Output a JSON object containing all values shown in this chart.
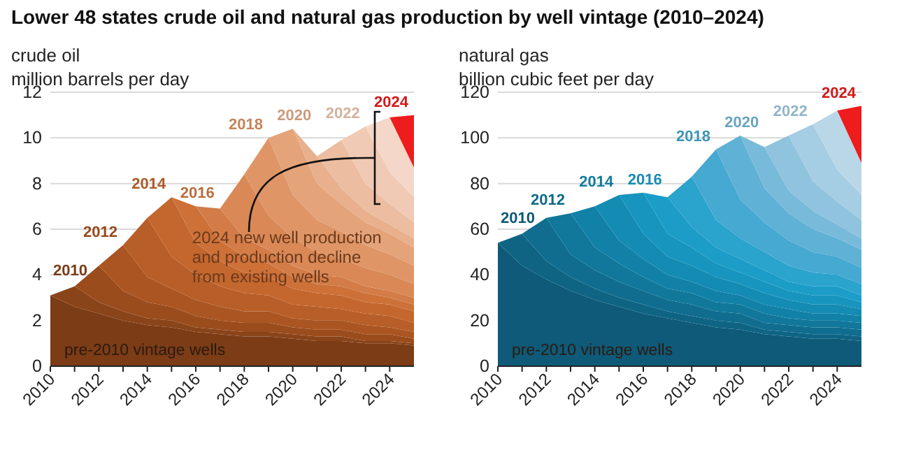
{
  "chart_data": [
    {
      "type": "area",
      "stacked": true,
      "title": "Lower 48 states crude oil and natural gas production by well vintage (2010–2024)",
      "subtitle": "crude oil",
      "ylabel": "million barrels per day",
      "x": [
        2010,
        2011,
        2012,
        2013,
        2014,
        2015,
        2016,
        2017,
        2018,
        2019,
        2020,
        2021,
        2022,
        2023,
        2024,
        2025
      ],
      "xlim": [
        2010,
        2025
      ],
      "xticks": [
        2010,
        {
          "value": 2011,
          "label": null
        },
        2012,
        {
          "value": 2013,
          "label": null
        },
        2014,
        {
          "value": 2015,
          "label": null
        },
        2016,
        {
          "value": 2017,
          "label": null
        },
        2018,
        {
          "value": 2019,
          "label": null
        },
        2020,
        {
          "value": 2021,
          "label": null
        },
        2022,
        {
          "value": 2023,
          "label": null
        },
        2024
      ],
      "ylim": [
        0,
        12
      ],
      "yticks": [
        0,
        2,
        4,
        6,
        8,
        10,
        12
      ],
      "grid": "y",
      "legend": false,
      "annotations": [
        "2024 new well production and production decline from existing wells"
      ],
      "series": [
        {
          "name": "pre-2010 vintage wells",
          "color": "#7b3c16",
          "values": [
            3.1,
            2.6,
            2.3,
            2.0,
            1.8,
            1.7,
            1.5,
            1.4,
            1.3,
            1.3,
            1.2,
            1.1,
            1.1,
            1.0,
            1.0,
            0.9
          ]
        },
        {
          "name": "2010",
          "color": "#8a4419",
          "values": [
            0,
            0.9,
            0.5,
            0.4,
            0.3,
            0.3,
            0.2,
            0.2,
            0.2,
            0.2,
            0.2,
            0.2,
            0.2,
            0.1,
            0.1,
            0.1
          ]
        },
        {
          "color": "#9a4c1d",
          "values": [
            null,
            0,
            1.6,
            0.9,
            0.7,
            0.6,
            0.5,
            0.4,
            0.4,
            0.4,
            0.3,
            0.3,
            0.3,
            0.3,
            0.3,
            0.2
          ]
        },
        {
          "name": "2012",
          "color": "#aa5522",
          "values": [
            null,
            null,
            0,
            2.0,
            1.1,
            0.8,
            0.7,
            0.6,
            0.5,
            0.5,
            0.4,
            0.4,
            0.4,
            0.4,
            0.3,
            0.3
          ]
        },
        {
          "color": "#b85e28",
          "values": [
            null,
            null,
            null,
            0,
            2.6,
            1.4,
            1.1,
            0.9,
            0.8,
            0.7,
            0.6,
            0.6,
            0.5,
            0.5,
            0.5,
            0.4
          ]
        },
        {
          "name": "2014",
          "color": "#c4672e",
          "values": [
            null,
            null,
            null,
            null,
            0,
            2.6,
            1.4,
            1.1,
            0.9,
            0.8,
            0.7,
            0.6,
            0.6,
            0.5,
            0.5,
            0.5
          ]
        },
        {
          "color": "#cd7139",
          "values": [
            null,
            null,
            null,
            null,
            null,
            0,
            1.6,
            0.9,
            0.7,
            0.6,
            0.5,
            0.4,
            0.4,
            0.4,
            0.3,
            0.3
          ]
        },
        {
          "name": "2016",
          "color": "#d37c47",
          "values": [
            null,
            null,
            null,
            null,
            null,
            null,
            0,
            1.4,
            0.8,
            0.6,
            0.5,
            0.4,
            0.4,
            0.3,
            0.3,
            0.3
          ]
        },
        {
          "color": "#d98856",
          "values": [
            null,
            null,
            null,
            null,
            null,
            null,
            null,
            0,
            2.8,
            1.5,
            1.2,
            1.0,
            0.8,
            0.8,
            0.7,
            0.6
          ]
        },
        {
          "name": "2018",
          "color": "#df9566",
          "values": [
            null,
            null,
            null,
            null,
            null,
            null,
            null,
            null,
            0,
            3.4,
            1.9,
            1.4,
            1.2,
            1.0,
            0.9,
            0.8
          ]
        },
        {
          "color": "#e4a379",
          "values": [
            null,
            null,
            null,
            null,
            null,
            null,
            null,
            null,
            null,
            0,
            2.9,
            1.6,
            1.2,
            1.0,
            0.9,
            0.8
          ]
        },
        {
          "name": "2020",
          "color": "#e8b08c",
          "values": [
            null,
            null,
            null,
            null,
            null,
            null,
            null,
            null,
            null,
            null,
            0,
            1.2,
            0.7,
            0.5,
            0.4,
            0.4
          ]
        },
        {
          "color": "#ecbda0",
          "values": [
            null,
            null,
            null,
            null,
            null,
            null,
            null,
            null,
            null,
            null,
            null,
            0,
            2.1,
            1.2,
            0.9,
            0.7
          ]
        },
        {
          "name": "2022",
          "color": "#f0cab4",
          "values": [
            null,
            null,
            null,
            null,
            null,
            null,
            null,
            null,
            null,
            null,
            null,
            null,
            0,
            2.5,
            1.4,
            1.1
          ]
        },
        {
          "color": "#f4d7c8",
          "values": [
            null,
            null,
            null,
            null,
            null,
            null,
            null,
            null,
            null,
            null,
            null,
            null,
            null,
            0,
            2.4,
            1.3
          ]
        },
        {
          "name": "2024",
          "color": "#ee1c1c",
          "values": [
            null,
            null,
            null,
            null,
            null,
            null,
            null,
            null,
            null,
            null,
            null,
            null,
            null,
            null,
            0,
            2.3
          ]
        }
      ]
    },
    {
      "type": "area",
      "stacked": true,
      "subtitle": "natural gas",
      "ylabel": "billion cubic feet per day",
      "x": [
        2010,
        2011,
        2012,
        2013,
        2014,
        2015,
        2016,
        2017,
        2018,
        2019,
        2020,
        2021,
        2022,
        2023,
        2024,
        2025
      ],
      "xlim": [
        2010,
        2025
      ],
      "xticks": [
        2010,
        {
          "value": 2011,
          "label": null
        },
        2012,
        {
          "value": 2013,
          "label": null
        },
        2014,
        {
          "value": 2015,
          "label": null
        },
        2016,
        {
          "value": 2017,
          "label": null
        },
        2018,
        {
          "value": 2019,
          "label": null
        },
        2020,
        {
          "value": 2021,
          "label": null
        },
        2022,
        {
          "value": 2023,
          "label": null
        },
        2024
      ],
      "ylim": [
        0,
        120
      ],
      "yticks": [
        0,
        20,
        40,
        60,
        80,
        100,
        120
      ],
      "grid": "y",
      "legend": false,
      "series": [
        {
          "name": "pre-2010 vintage wells",
          "color": "#0e5a78",
          "values": [
            54,
            44,
            38,
            33,
            29,
            26,
            23,
            21,
            19,
            17,
            16,
            14,
            13,
            12,
            12,
            11
          ]
        },
        {
          "name": "2010",
          "color": "#0f6484",
          "values": [
            0,
            14,
            8,
            6,
            5,
            4,
            4,
            3,
            3,
            3,
            3,
            2,
            2,
            2,
            2,
            2
          ]
        },
        {
          "color": "#106d8f",
          "values": [
            null,
            0,
            19,
            10,
            8,
            7,
            6,
            5,
            5,
            4,
            4,
            3,
            3,
            3,
            3,
            3
          ]
        },
        {
          "name": "2012",
          "color": "#11779b",
          "values": [
            null,
            null,
            0,
            18,
            10,
            8,
            6,
            5,
            5,
            4,
            4,
            4,
            3,
            3,
            3,
            3
          ]
        },
        {
          "color": "#1281a7",
          "values": [
            null,
            null,
            null,
            0,
            18,
            10,
            8,
            6,
            5,
            5,
            4,
            4,
            4,
            3,
            3,
            3
          ]
        },
        {
          "name": "2014",
          "color": "#148bb3",
          "values": [
            null,
            null,
            null,
            null,
            0,
            20,
            11,
            8,
            7,
            6,
            5,
            5,
            4,
            4,
            4,
            3
          ]
        },
        {
          "color": "#1795be",
          "values": [
            null,
            null,
            null,
            null,
            null,
            0,
            18,
            10,
            8,
            6,
            5,
            5,
            4,
            4,
            4,
            3
          ]
        },
        {
          "name": "2016",
          "color": "#1b9dc8",
          "values": [
            null,
            null,
            null,
            null,
            null,
            null,
            0,
            16,
            9,
            7,
            6,
            5,
            4,
            4,
            4,
            3
          ]
        },
        {
          "color": "#2aa3cd",
          "values": [
            null,
            null,
            null,
            null,
            null,
            null,
            null,
            0,
            22,
            12,
            9,
            8,
            7,
            6,
            5,
            5
          ]
        },
        {
          "name": "2018",
          "color": "#45a9d2",
          "values": [
            null,
            null,
            null,
            null,
            null,
            null,
            null,
            null,
            0,
            31,
            17,
            13,
            11,
            9,
            8,
            7
          ]
        },
        {
          "color": "#5fb1d6",
          "values": [
            null,
            null,
            null,
            null,
            null,
            null,
            null,
            null,
            null,
            0,
            28,
            15,
            12,
            10,
            8,
            8
          ]
        },
        {
          "name": "2020",
          "color": "#78bada",
          "values": [
            null,
            null,
            null,
            null,
            null,
            null,
            null,
            null,
            null,
            null,
            0,
            18,
            10,
            8,
            6,
            5
          ]
        },
        {
          "color": "#8fc3de",
          "values": [
            null,
            null,
            null,
            null,
            null,
            null,
            null,
            null,
            null,
            null,
            null,
            0,
            24,
            13,
            10,
            8
          ]
        },
        {
          "name": "2022",
          "color": "#a5cde3",
          "values": [
            null,
            null,
            null,
            null,
            null,
            null,
            null,
            null,
            null,
            null,
            null,
            null,
            0,
            25,
            14,
            11
          ]
        },
        {
          "color": "#bad7e8",
          "values": [
            null,
            null,
            null,
            null,
            null,
            null,
            null,
            null,
            null,
            null,
            null,
            null,
            null,
            0,
            26,
            14
          ]
        },
        {
          "name": "2024",
          "color": "#ee1c1c",
          "values": [
            null,
            null,
            null,
            null,
            null,
            null,
            null,
            null,
            null,
            null,
            null,
            null,
            null,
            null,
            0,
            25
          ]
        }
      ]
    }
  ]
}
